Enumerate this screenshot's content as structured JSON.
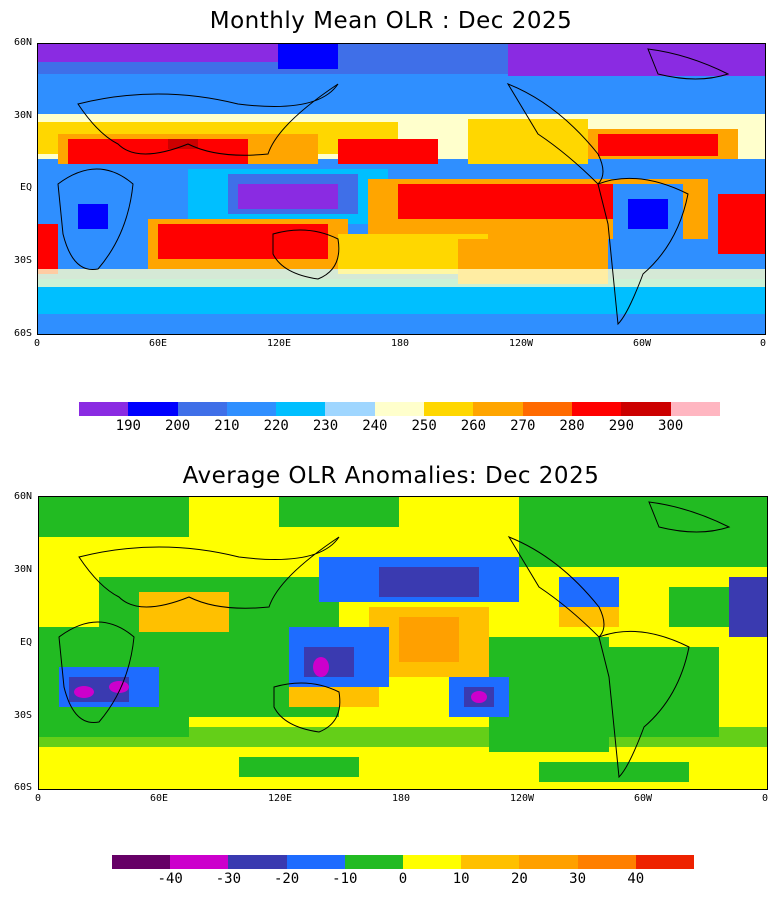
{
  "panel1": {
    "title": "Monthly Mean OLR : Dec 2025",
    "lat_labels": [
      "60N",
      "30N",
      "EQ",
      "30S",
      "60S"
    ],
    "lon_labels": [
      "0",
      "60E",
      "120E",
      "180",
      "120W",
      "60W",
      "0"
    ],
    "colorbar": {
      "colors": [
        "#8a2be2",
        "#0000ff",
        "#3f6fe8",
        "#2f8fff",
        "#00bfff",
        "#9fd6ff",
        "#ffffcc",
        "#ffd700",
        "#ffa500",
        "#ff6a00",
        "#ff0000",
        "#cc0000",
        "#ffb6c1"
      ],
      "labels": [
        "190",
        "200",
        "210",
        "220",
        "230",
        "240",
        "250",
        "260",
        "270",
        "280",
        "290",
        "300"
      ]
    }
  },
  "panel2": {
    "title": "Average OLR Anomalies: Dec 2025",
    "lat_labels": [
      "60N",
      "30N",
      "EQ",
      "30S",
      "60S"
    ],
    "lon_labels": [
      "0",
      "60E",
      "120E",
      "180",
      "120W",
      "60W",
      "0"
    ],
    "colorbar": {
      "colors": [
        "#660066",
        "#cc00cc",
        "#3a3ab0",
        "#1e6cff",
        "#22bb22",
        "#ffff00",
        "#ffc000",
        "#ffa000",
        "#ff7f00",
        "#ee2200"
      ],
      "labels": [
        "-40",
        "-30",
        "-20",
        "-10",
        "0",
        "10",
        "20",
        "30",
        "40"
      ]
    }
  }
}
